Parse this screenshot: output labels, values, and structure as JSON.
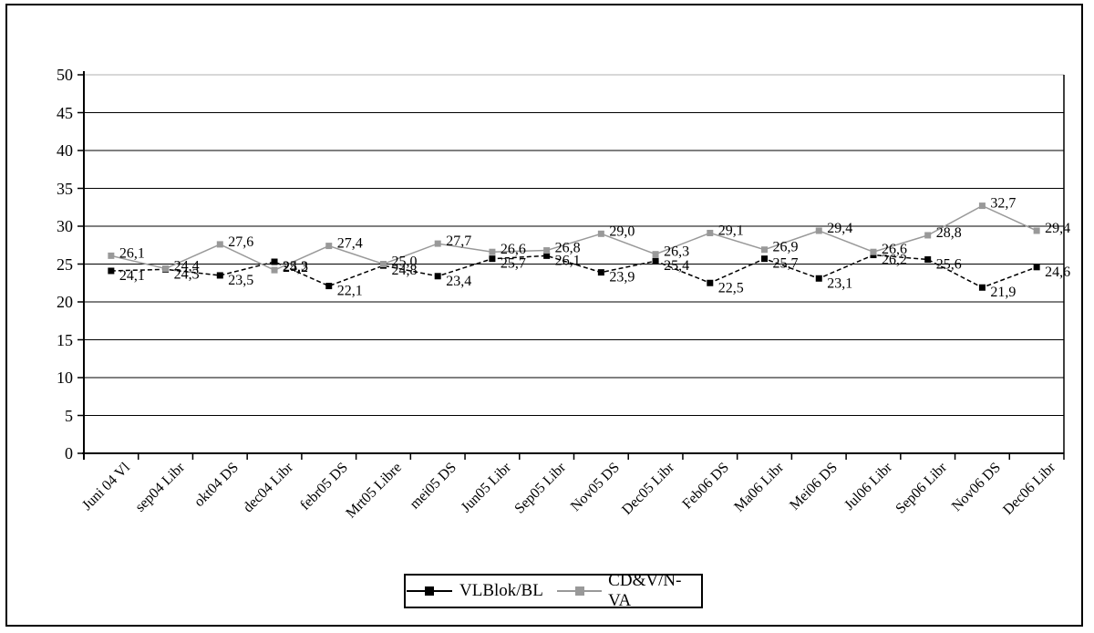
{
  "chart_data": {
    "type": "line",
    "title": "",
    "xlabel": "",
    "ylabel": "",
    "categories": [
      "Juni 04 Vl",
      "sep04 Libr",
      "okt04 DS",
      "dec04 Libr",
      "febr05 DS",
      "Mrt05 Libre",
      "mei05 DS",
      "Jun05 Libr",
      "Sep05 Libr",
      "Nov05 DS",
      "Dec05 Libr",
      "Feb06 DS",
      "Ma06 Libr",
      "Mei06 DS",
      "Jul06 Libr",
      "Sep06 Libr",
      "Nov06 DS",
      "Dec06 Libr"
    ],
    "series": [
      {
        "name": "VLBlok/BL",
        "color": "#000000",
        "marker": "square",
        "line_style": "dashed",
        "values": [
          24.1,
          24.3,
          23.5,
          25.3,
          22.1,
          24.8,
          23.4,
          25.7,
          26.1,
          23.9,
          25.4,
          22.5,
          25.7,
          23.1,
          26.2,
          25.6,
          21.9,
          24.6
        ]
      },
      {
        "name": "CD&V/N-VA",
        "color": "#999999",
        "marker": "square",
        "line_style": "solid",
        "values": [
          26.1,
          24.4,
          27.6,
          24.2,
          27.4,
          25.0,
          27.7,
          26.6,
          26.8,
          29.0,
          26.3,
          29.1,
          26.9,
          29.4,
          26.6,
          28.8,
          32.7,
          29.4
        ]
      }
    ],
    "ylim": [
      0,
      50
    ],
    "ytick_step": 5,
    "yticks": [
      0,
      5,
      10,
      15,
      20,
      25,
      30,
      35,
      40,
      45,
      50
    ],
    "grid": true,
    "gridline_color": "#000000",
    "top_gridline_color": "#b0b0b0",
    "decimal_separator": ",",
    "data_labels": true,
    "legend_position": "bottom-center"
  }
}
